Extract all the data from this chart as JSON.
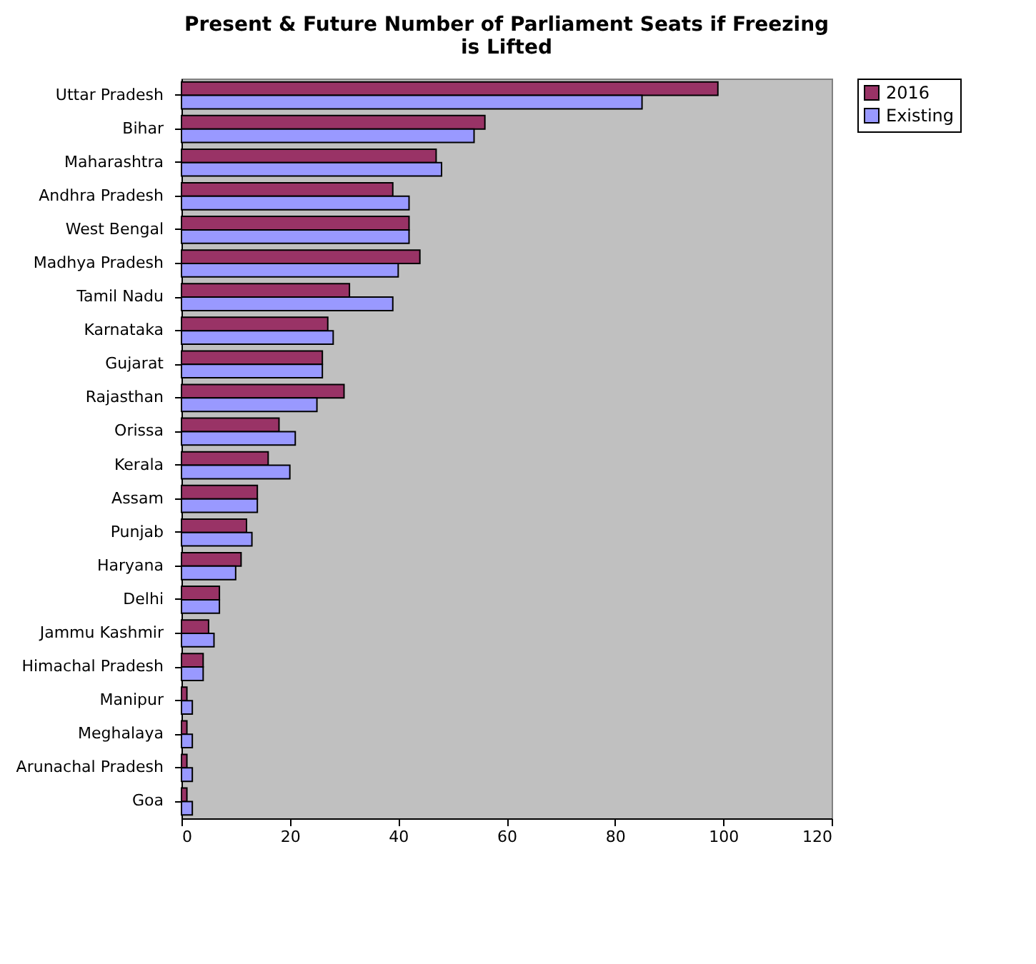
{
  "chart_data": {
    "type": "bar",
    "orientation": "horizontal",
    "title": "Present & Future Number of Parliament Seats if Freezing is Lifted",
    "categories": [
      "Uttar Pradesh",
      "Bihar",
      "Maharashtra",
      "Andhra Pradesh",
      "West Bengal",
      "Madhya Pradesh",
      "Tamil Nadu",
      "Karnataka",
      "Gujarat",
      "Rajasthan",
      "Orissa",
      "Kerala",
      "Assam",
      "Punjab",
      "Haryana",
      "Delhi",
      "Jammu Kashmir",
      "Himachal Pradesh",
      "Manipur",
      "Meghalaya",
      "Arunachal Pradesh",
      "Goa"
    ],
    "series": [
      {
        "name": "2016",
        "color": "#993366",
        "values": [
          99,
          56,
          47,
          39,
          42,
          44,
          31,
          27,
          26,
          30,
          18,
          16,
          14,
          12,
          11,
          7,
          5,
          4,
          1,
          1,
          1,
          1
        ]
      },
      {
        "name": "Existing",
        "color": "#9999ff",
        "values": [
          85,
          54,
          48,
          42,
          42,
          40,
          39,
          28,
          26,
          25,
          21,
          20,
          14,
          13,
          10,
          7,
          6,
          4,
          2,
          2,
          2,
          2
        ]
      }
    ],
    "xlim": [
      0,
      120
    ],
    "xticks": [
      0,
      20,
      40,
      60,
      80,
      100,
      120
    ],
    "grid": false,
    "legend": "right"
  }
}
